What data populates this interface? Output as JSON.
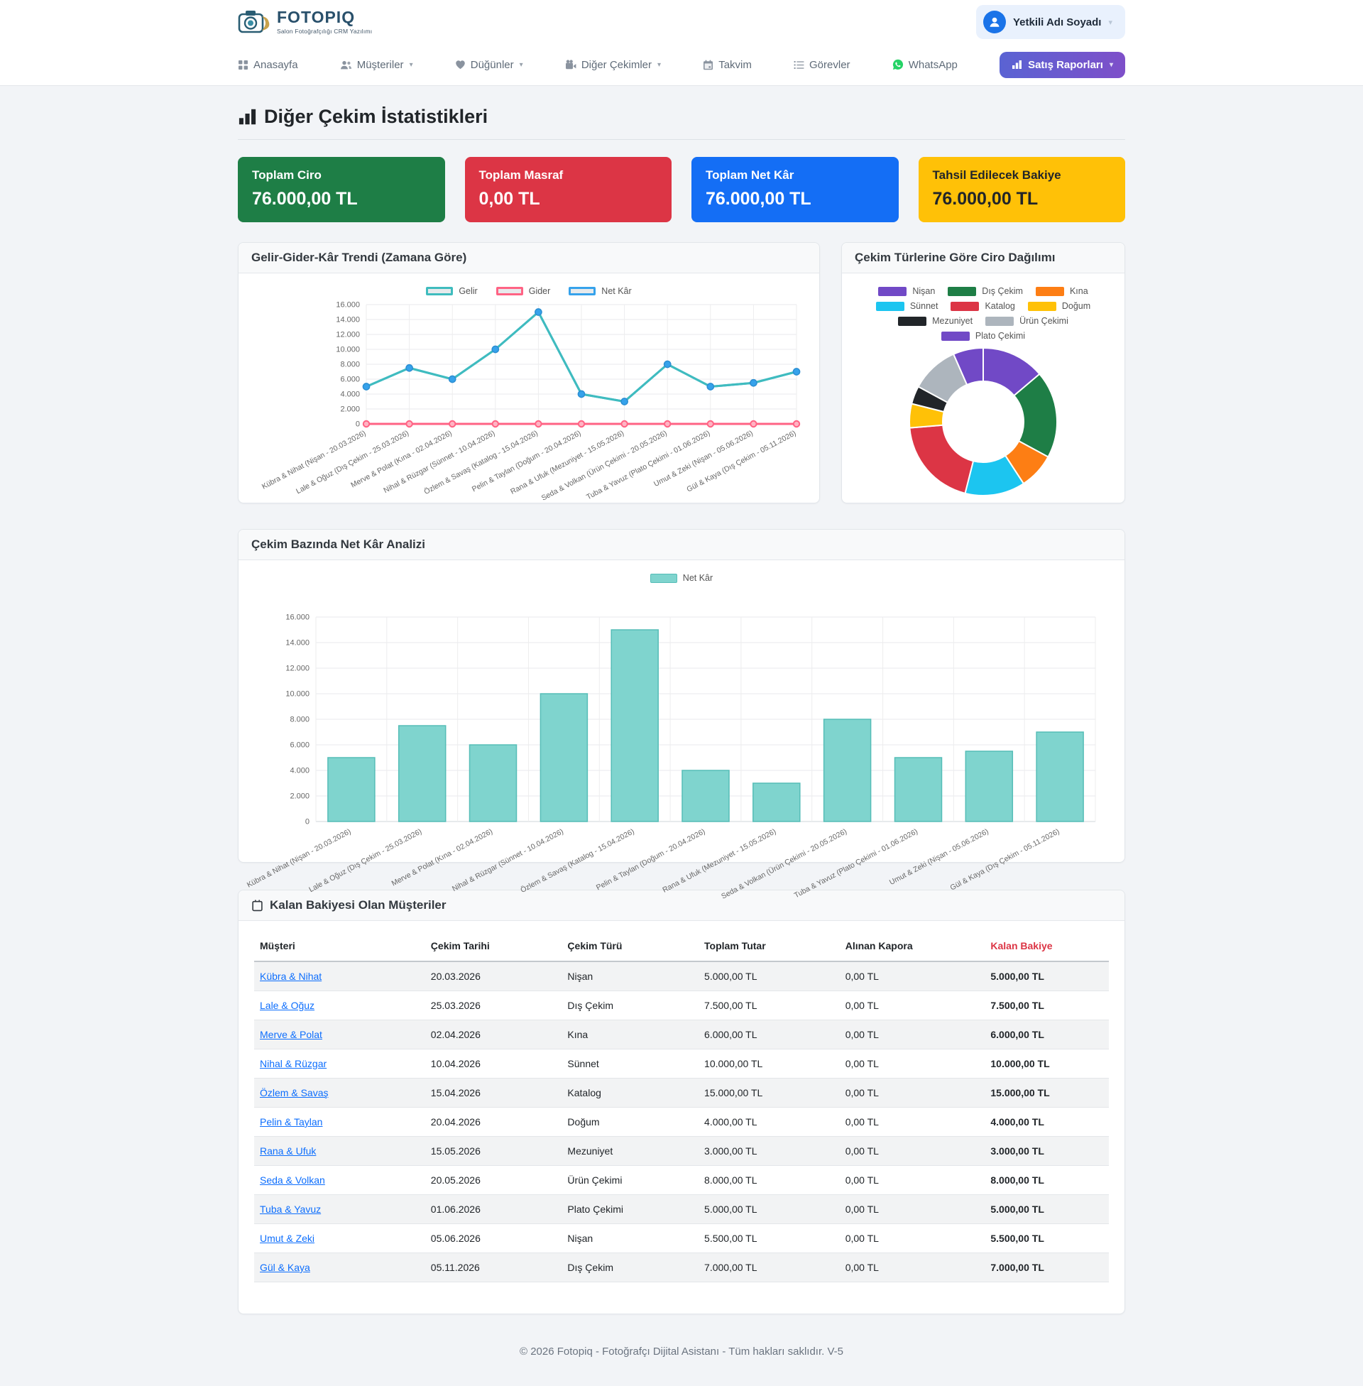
{
  "brand": {
    "name": "FOTOPIQ",
    "tagline": "Salon Fotoğrafçılığı CRM Yazılımı"
  },
  "user": {
    "name": "Yetkili Adı Soyadı"
  },
  "nav": {
    "items": [
      {
        "label": "Anasayfa",
        "icon": "grid-icon",
        "caret": false
      },
      {
        "label": "Müşteriler",
        "icon": "people-icon",
        "caret": true
      },
      {
        "label": "Düğünler",
        "icon": "heart-icon",
        "caret": true
      },
      {
        "label": "Diğer Çekimler",
        "icon": "video-camera-icon",
        "caret": true
      },
      {
        "label": "Takvim",
        "icon": "calendar-icon",
        "caret": false
      },
      {
        "label": "Görevler",
        "icon": "task-list-icon",
        "caret": false
      },
      {
        "label": "WhatsApp",
        "icon": "whatsapp-icon",
        "caret": false
      }
    ],
    "sales_button": {
      "label": "Satış Raporları",
      "icon": "bar-chart-icon",
      "caret": true
    }
  },
  "page": {
    "title": "Diğer Çekim İstatistikleri"
  },
  "summary_cards": [
    {
      "label": "Toplam Ciro",
      "value": "76.000,00 TL",
      "color": "#1e7e46",
      "text": "#ffffff"
    },
    {
      "label": "Toplam Masraf",
      "value": "0,00 TL",
      "color": "#dc3545",
      "text": "#ffffff"
    },
    {
      "label": "Toplam Net Kâr",
      "value": "76.000,00 TL",
      "color": "#146ef5",
      "text": "#ffffff"
    },
    {
      "label": "Tahsil Edilecek Bakiye",
      "value": "76.000,00 TL",
      "color": "#ffc107",
      "text": "#212529"
    }
  ],
  "chart_data": [
    {
      "type": "line",
      "title": "Gelir-Gider-Kâr Trendi (Zamana Göre)",
      "categories": [
        "Kübra & Nihat (Nişan - 20.03.2026)",
        "Lale & Oğuz (Dış Çekim - 25.03.2026)",
        "Merve & Polat (Kına - 02.04.2026)",
        "Nihal & Rüzgar (Sünnet - 10.04.2026)",
        "Özlem & Savaş (Katalog - 15.04.2026)",
        "Pelin & Taylan (Doğum - 20.04.2026)",
        "Rana & Ufuk (Mezuniyet - 15.05.2026)",
        "Seda & Volkan (Ürün Çekimi - 20.05.2026)",
        "Tuba & Yavuz (Plato Çekimi - 01.06.2026)",
        "Umut & Zeki (Nişan - 05.06.2026)",
        "Gül & Kaya (Dış Çekim - 05.11.2026)"
      ],
      "series": [
        {
          "name": "Gelir",
          "color": "#3fbcbe",
          "values": [
            5000,
            7500,
            6000,
            10000,
            15000,
            4000,
            3000,
            8000,
            5000,
            5500,
            7000
          ]
        },
        {
          "name": "Gider",
          "color": "#ff6384",
          "values": [
            0,
            0,
            0,
            0,
            0,
            0,
            0,
            0,
            0,
            0,
            0
          ]
        },
        {
          "name": "Net Kâr",
          "color": "#36a2eb",
          "values": [
            5000,
            7500,
            6000,
            10000,
            15000,
            4000,
            3000,
            8000,
            5000,
            5500,
            7000
          ]
        }
      ],
      "ylim": [
        0,
        16000
      ],
      "ytick_step": 2000,
      "grid": true,
      "legend_position": "top"
    },
    {
      "type": "pie",
      "title": "Çekim Türlerine Göre Ciro Dağılımı",
      "labels": [
        "Nişan",
        "Dış Çekim",
        "Kına",
        "Sünnet",
        "Katalog",
        "Doğum",
        "Mezuniyet",
        "Ürün Çekimi",
        "Plato Çekimi"
      ],
      "values": [
        10500,
        14500,
        6000,
        10000,
        15000,
        4000,
        3000,
        8000,
        5000
      ],
      "colors": [
        "#7149c6",
        "#1e7e46",
        "#fd7e14",
        "#1cc5f0",
        "#dc3545",
        "#ffc107",
        "#212529",
        "#adb5bd",
        "#7149c6"
      ],
      "doughnut": true,
      "legend_position": "top"
    },
    {
      "type": "bar",
      "title": "Çekim Bazında Net Kâr Analizi",
      "categories": [
        "Kübra & Nihat (Nişan - 20.03.2026)",
        "Lale & Oğuz (Dış Çekim - 25.03.2026)",
        "Merve & Polat (Kına - 02.04.2026)",
        "Nihal & Rüzgar (Sünnet - 10.04.2026)",
        "Özlem & Savaş (Katalog - 15.04.2026)",
        "Pelin & Taylan (Doğum - 20.04.2026)",
        "Rana & Ufuk (Mezuniyet - 15.05.2026)",
        "Seda & Volkan (Ürün Çekimi - 20.05.2026)",
        "Tuba & Yavuz (Plato Çekimi - 01.06.2026)",
        "Umut & Zeki (Nişan - 05.06.2026)",
        "Gül & Kaya (Dış Çekim - 05.11.2026)"
      ],
      "series": [
        {
          "name": "Net Kâr",
          "fill": "#7fd4ce",
          "border": "#56bdb7",
          "values": [
            5000,
            7500,
            6000,
            10000,
            15000,
            4000,
            3000,
            8000,
            5000,
            5500,
            7000
          ]
        }
      ],
      "ylim": [
        0,
        16000
      ],
      "ytick_step": 2000,
      "grid": true,
      "legend_position": "top"
    }
  ],
  "table": {
    "title": "Kalan Bakiyesi Olan Müşteriler",
    "columns": [
      "Müşteri",
      "Çekim Tarihi",
      "Çekim Türü",
      "Toplam Tutar",
      "Alınan Kapora",
      "Kalan Bakiye"
    ],
    "rows": [
      {
        "customer": "Kübra & Nihat",
        "date": "20.03.2026",
        "type": "Nişan",
        "total": "5.000,00 TL",
        "deposit": "0,00 TL",
        "balance": "5.000,00 TL"
      },
      {
        "customer": "Lale & Oğuz",
        "date": "25.03.2026",
        "type": "Dış Çekim",
        "total": "7.500,00 TL",
        "deposit": "0,00 TL",
        "balance": "7.500,00 TL"
      },
      {
        "customer": "Merve & Polat",
        "date": "02.04.2026",
        "type": "Kına",
        "total": "6.000,00 TL",
        "deposit": "0,00 TL",
        "balance": "6.000,00 TL"
      },
      {
        "customer": "Nihal & Rüzgar",
        "date": "10.04.2026",
        "type": "Sünnet",
        "total": "10.000,00 TL",
        "deposit": "0,00 TL",
        "balance": "10.000,00 TL"
      },
      {
        "customer": "Özlem & Savaş",
        "date": "15.04.2026",
        "type": "Katalog",
        "total": "15.000,00 TL",
        "deposit": "0,00 TL",
        "balance": "15.000,00 TL"
      },
      {
        "customer": "Pelin & Taylan",
        "date": "20.04.2026",
        "type": "Doğum",
        "total": "4.000,00 TL",
        "deposit": "0,00 TL",
        "balance": "4.000,00 TL"
      },
      {
        "customer": "Rana & Ufuk",
        "date": "15.05.2026",
        "type": "Mezuniyet",
        "total": "3.000,00 TL",
        "deposit": "0,00 TL",
        "balance": "3.000,00 TL"
      },
      {
        "customer": "Seda & Volkan",
        "date": "20.05.2026",
        "type": "Ürün Çekimi",
        "total": "8.000,00 TL",
        "deposit": "0,00 TL",
        "balance": "8.000,00 TL"
      },
      {
        "customer": "Tuba & Yavuz",
        "date": "01.06.2026",
        "type": "Plato Çekimi",
        "total": "5.000,00 TL",
        "deposit": "0,00 TL",
        "balance": "5.000,00 TL"
      },
      {
        "customer": "Umut & Zeki",
        "date": "05.06.2026",
        "type": "Nişan",
        "total": "5.500,00 TL",
        "deposit": "0,00 TL",
        "balance": "5.500,00 TL"
      },
      {
        "customer": "Gül & Kaya",
        "date": "05.11.2026",
        "type": "Dış Çekim",
        "total": "7.000,00 TL",
        "deposit": "0,00 TL",
        "balance": "7.000,00 TL"
      }
    ]
  },
  "footer": {
    "text": "© 2026 Fotopiq - Fotoğrafçı Dijital Asistanı - Tüm hakları saklıdır. V-5"
  }
}
